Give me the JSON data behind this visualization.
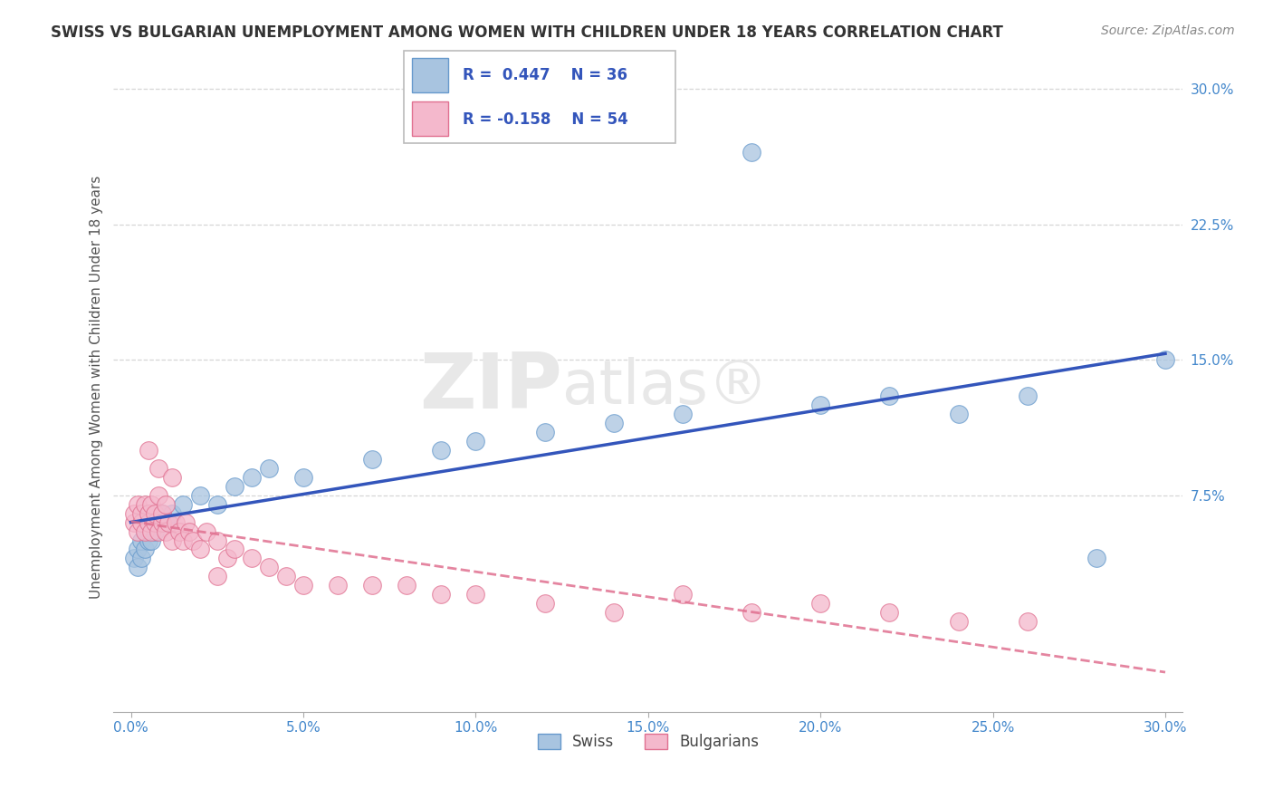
{
  "title": "SWISS VS BULGARIAN UNEMPLOYMENT AMONG WOMEN WITH CHILDREN UNDER 18 YEARS CORRELATION CHART",
  "source": "Source: ZipAtlas.com",
  "ylabel": "Unemployment Among Women with Children Under 18 years",
  "xlim": [
    -0.005,
    0.305
  ],
  "ylim": [
    -0.045,
    0.315
  ],
  "xtick_positions": [
    0.0,
    0.05,
    0.1,
    0.15,
    0.2,
    0.25,
    0.3
  ],
  "xtick_labels": [
    "0.0%",
    "5.0%",
    "10.0%",
    "15.0%",
    "20.0%",
    "25.0%",
    "30.0%"
  ],
  "ytick_positions": [
    0.075,
    0.15,
    0.225,
    0.3
  ],
  "ytick_labels": [
    "7.5%",
    "15.0%",
    "22.5%",
    "30.0%"
  ],
  "swiss_R": 0.447,
  "swiss_N": 36,
  "bulgarian_R": -0.158,
  "bulgarian_N": 54,
  "swiss_dot_color": "#a8c4e0",
  "swiss_edge_color": "#6699cc",
  "swiss_line_color": "#3355bb",
  "bulgarian_dot_color": "#f4b8cc",
  "bulgarian_edge_color": "#e07090",
  "bulgarian_line_color": "#e07090",
  "tick_color": "#4488cc",
  "watermark": "ZIPatlas®",
  "swiss_x": [
    0.001,
    0.002,
    0.002,
    0.003,
    0.003,
    0.004,
    0.004,
    0.005,
    0.005,
    0.006,
    0.006,
    0.007,
    0.008,
    0.009,
    0.01,
    0.012,
    0.015,
    0.02,
    0.025,
    0.03,
    0.035,
    0.04,
    0.05,
    0.07,
    0.09,
    0.1,
    0.12,
    0.14,
    0.16,
    0.18,
    0.2,
    0.22,
    0.24,
    0.26,
    0.28,
    0.3
  ],
  "swiss_y": [
    0.04,
    0.035,
    0.045,
    0.04,
    0.05,
    0.045,
    0.055,
    0.05,
    0.055,
    0.05,
    0.06,
    0.055,
    0.06,
    0.065,
    0.06,
    0.065,
    0.07,
    0.075,
    0.07,
    0.08,
    0.085,
    0.09,
    0.085,
    0.095,
    0.1,
    0.105,
    0.11,
    0.115,
    0.12,
    0.265,
    0.125,
    0.13,
    0.12,
    0.13,
    0.04,
    0.15
  ],
  "bulgarian_x": [
    0.001,
    0.001,
    0.002,
    0.002,
    0.003,
    0.003,
    0.004,
    0.004,
    0.005,
    0.005,
    0.006,
    0.006,
    0.007,
    0.007,
    0.008,
    0.008,
    0.009,
    0.009,
    0.01,
    0.01,
    0.011,
    0.012,
    0.013,
    0.014,
    0.015,
    0.016,
    0.017,
    0.018,
    0.02,
    0.022,
    0.025,
    0.028,
    0.03,
    0.035,
    0.04,
    0.045,
    0.05,
    0.06,
    0.07,
    0.08,
    0.09,
    0.1,
    0.12,
    0.14,
    0.16,
    0.18,
    0.2,
    0.22,
    0.24,
    0.26,
    0.005,
    0.008,
    0.012,
    0.025
  ],
  "bulgarian_y": [
    0.06,
    0.065,
    0.055,
    0.07,
    0.06,
    0.065,
    0.055,
    0.07,
    0.06,
    0.065,
    0.055,
    0.07,
    0.06,
    0.065,
    0.055,
    0.075,
    0.06,
    0.065,
    0.055,
    0.07,
    0.06,
    0.05,
    0.06,
    0.055,
    0.05,
    0.06,
    0.055,
    0.05,
    0.045,
    0.055,
    0.05,
    0.04,
    0.045,
    0.04,
    0.035,
    0.03,
    0.025,
    0.025,
    0.025,
    0.025,
    0.02,
    0.02,
    0.015,
    0.01,
    0.02,
    0.01,
    0.015,
    0.01,
    0.005,
    0.005,
    0.1,
    0.09,
    0.085,
    0.03
  ]
}
